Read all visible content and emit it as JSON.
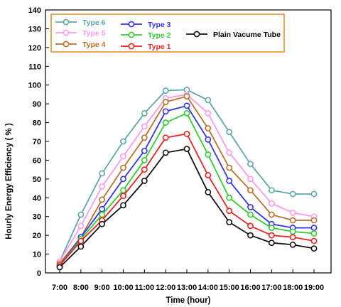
{
  "chart_data": {
    "type": "line",
    "xlabel": "Time (hour)",
    "ylabel": "Hourly Energy Efficiency ( % )",
    "x": [
      "7:00",
      "8:00",
      "9:00",
      "10:00",
      "11:00",
      "12:00",
      "13:00",
      "14:00",
      "15:00",
      "16:00",
      "17:00",
      "18:00",
      "19:00"
    ],
    "ylim": [
      0,
      140
    ],
    "yticks": [
      0,
      10,
      20,
      30,
      40,
      50,
      60,
      70,
      80,
      90,
      100,
      110,
      120,
      130,
      140
    ],
    "grid": false,
    "legend_position": "top-left",
    "series": [
      {
        "name": "Type 6",
        "color": "#5fa8a8",
        "values": [
          6,
          31,
          53,
          70,
          85,
          97,
          97.5,
          92,
          75,
          58,
          44,
          42,
          42
        ]
      },
      {
        "name": "Type 5",
        "color": "#ff99ee",
        "values": [
          6,
          25,
          46,
          62,
          78,
          93,
          95,
          85,
          64,
          50,
          37,
          32,
          30
        ]
      },
      {
        "name": "Type 4",
        "color": "#b8722c",
        "values": [
          5,
          19,
          39,
          56,
          72,
          91,
          94,
          77,
          56,
          44,
          31,
          28,
          28
        ]
      },
      {
        "name": "Type 3",
        "color": "#3333ee",
        "values": [
          4,
          19,
          34,
          50,
          65,
          86,
          89,
          71,
          49,
          35,
          26,
          24,
          24
        ]
      },
      {
        "name": "Type 2",
        "color": "#33cc33",
        "values": [
          4,
          18,
          31,
          44,
          60,
          80,
          85,
          63,
          40,
          31,
          24,
          22,
          21
        ]
      },
      {
        "name": "Type 1",
        "color": "#ee2222",
        "values": [
          4,
          17,
          28,
          41,
          55,
          72,
          74,
          52,
          33,
          25,
          20,
          19,
          17
        ]
      },
      {
        "name": "Plain Vacume Tube",
        "color": "#111111",
        "values": [
          3,
          14,
          26,
          36,
          49,
          64,
          66,
          43,
          27,
          20,
          16,
          15,
          13
        ]
      }
    ]
  }
}
